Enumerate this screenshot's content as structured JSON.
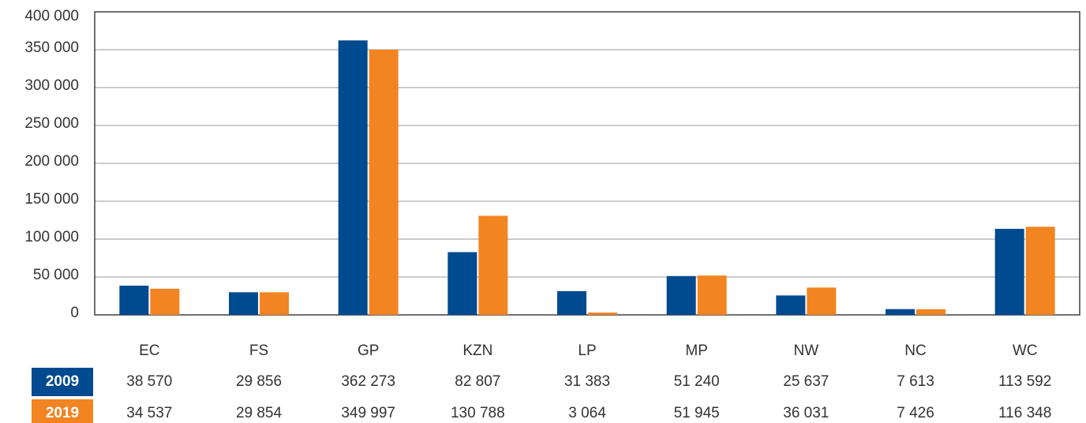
{
  "chart_data": {
    "type": "bar",
    "categories": [
      "EC",
      "FS",
      "GP",
      "KZN",
      "LP",
      "MP",
      "NW",
      "NC",
      "WC"
    ],
    "series": [
      {
        "name": "2009",
        "color": "#004a8f",
        "values": [
          38570,
          29856,
          362273,
          82807,
          31383,
          51240,
          25637,
          7613,
          113592
        ],
        "value_labels": [
          "38 570",
          "29 856",
          "362 273",
          "82 807",
          "31 383",
          "51 240",
          "25 637",
          "7 613",
          "113 592"
        ]
      },
      {
        "name": "2019",
        "color": "#f28421",
        "values": [
          34537,
          29854,
          349997,
          130788,
          3064,
          51945,
          36031,
          7426,
          116348
        ],
        "value_labels": [
          "34 537",
          "29 854",
          "349 997",
          "130 788",
          "3 064",
          "51 945",
          "36 031",
          "7 426",
          "116 348"
        ]
      }
    ],
    "ylim": [
      0,
      400000
    ],
    "yticks": [
      0,
      {
        "value": 50000,
        "label": "50 000"
      },
      {
        "value": 100000,
        "label": "100 000"
      },
      {
        "value": 150000,
        "label": "150 000"
      },
      {
        "value": 200000,
        "label": "200 000"
      },
      {
        "value": 250000,
        "label": "250 000"
      },
      {
        "value": 300000,
        "label": "300 000"
      },
      {
        "value": 350000,
        "label": "350 000"
      },
      {
        "value": 400000,
        "label": "400 000"
      }
    ],
    "grid": true
  }
}
